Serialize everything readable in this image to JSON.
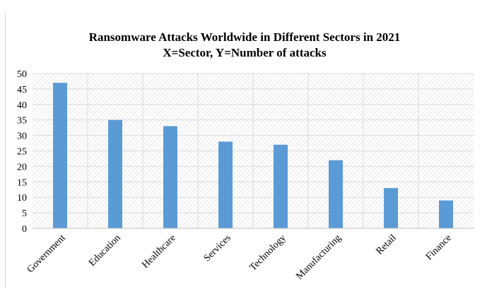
{
  "chart_data": {
    "type": "bar",
    "title": "Ransomware Attacks Worldwide in Different Sectors in 2021",
    "subtitle": "X=Sector, Y=Number of attacks",
    "categories": [
      "Government",
      "Education",
      "Healthcare",
      "Services",
      "Technology",
      "Manufacturing",
      "Retail",
      "Finance"
    ],
    "values": [
      47,
      35,
      33,
      28,
      27,
      22,
      13,
      9
    ],
    "ylim": [
      0,
      50
    ],
    "yticks": [
      0,
      5,
      10,
      15,
      20,
      25,
      30,
      35,
      40,
      45,
      50
    ],
    "xlabel": "",
    "ylabel": "",
    "grid": true,
    "legend": "none",
    "bar_color": "#5b9bd5",
    "plot_background": "hatched"
  }
}
